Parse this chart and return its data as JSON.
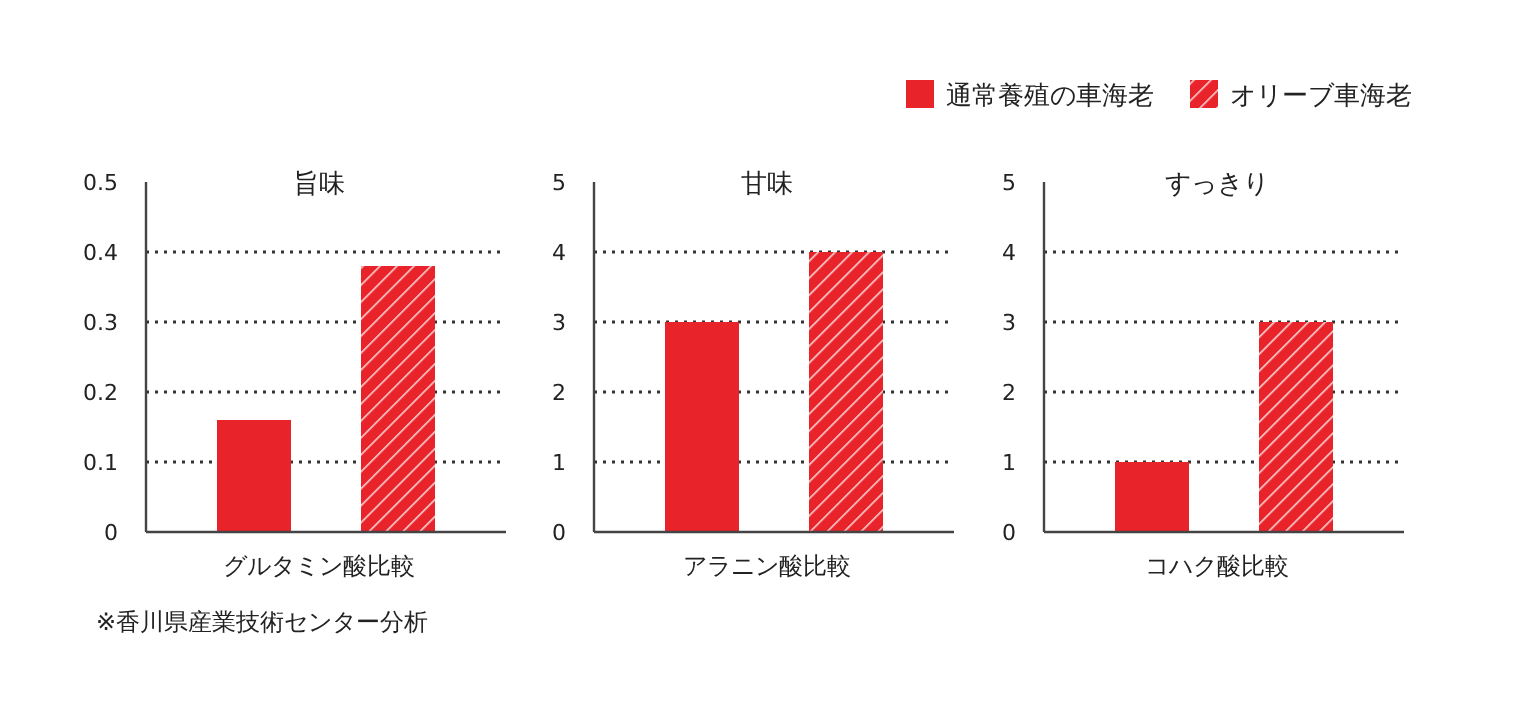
{
  "chart_data": [
    {
      "type": "bar",
      "title": "旨味",
      "xlabel": "グルタミン酸比較",
      "categories": [
        null
      ],
      "series": [
        {
          "color": "#e8232a",
          "values": [
            0.16
          ]
        },
        {
          "color": "#e8232a",
          "values": [
            0.38
          ]
        }
      ],
      "ylim": [
        0,
        0.5
      ],
      "yticks": [
        0,
        0.1,
        0.2,
        0.3,
        0.4,
        0.5
      ],
      "grid": "y",
      "annotations": [
        "※香川県産業技術センター分析"
      ]
    },
    {
      "type": "bar",
      "title": "甘味",
      "xlabel": "アラニン酸比較",
      "categories": [
        null
      ],
      "series": [
        {
          "name": "通常養殖の車海老",
          "color": "#e8232a",
          "values": [
            3
          ]
        },
        {
          "name": "オリーブ車海老",
          "color": "#e8232a",
          "values": [
            4
          ]
        }
      ],
      "ylim": [
        0,
        5
      ],
      "yticks": [
        0,
        1,
        2,
        3,
        4,
        5
      ],
      "grid": "y",
      "legend": "top right"
    },
    {
      "type": "bar",
      "title": "すっきり",
      "xlabel": "コハク酸比較",
      "categories": [
        null
      ],
      "series": [
        {
          "color": "#e8232a",
          "values": [
            1
          ]
        },
        {
          "color": "#e8232a",
          "values": [
            3
          ]
        }
      ],
      "ylim": [
        0,
        5
      ],
      "yticks": [
        0,
        1,
        2,
        3,
        4,
        5
      ],
      "grid": "y"
    }
  ]
}
